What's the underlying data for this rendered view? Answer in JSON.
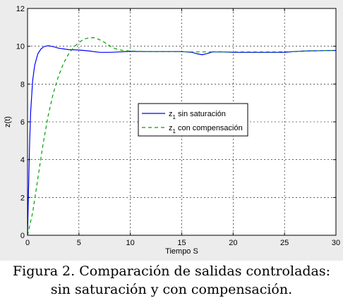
{
  "chart_data": {
    "type": "line",
    "xlabel": "Tiempo S",
    "ylabel": "z(t)",
    "xlim": [
      0,
      30
    ],
    "ylim": [
      0,
      12
    ],
    "x_ticks": [
      0,
      5,
      10,
      15,
      20,
      25,
      30
    ],
    "y_ticks": [
      0,
      2,
      4,
      6,
      8,
      10,
      12
    ],
    "grid": true,
    "legend_position": "center-right",
    "series": [
      {
        "name": "z",
        "name_subscript": "1",
        "name_suffix": " sin saturación",
        "color": "#0000ff",
        "dash": "solid",
        "x": [
          0,
          0.1,
          0.2,
          0.3,
          0.5,
          0.7,
          1.0,
          1.3,
          1.6,
          2.0,
          2.5,
          3,
          4,
          5,
          6,
          7,
          8,
          9,
          10,
          11,
          12,
          13,
          14,
          15,
          16,
          16.5,
          17,
          17.5,
          18,
          19,
          20,
          22,
          24,
          25,
          26,
          27,
          28,
          29,
          30
        ],
        "y": [
          0,
          2.5,
          4.8,
          6.5,
          8.2,
          9.0,
          9.6,
          9.85,
          9.98,
          10.03,
          9.98,
          9.9,
          9.82,
          9.8,
          9.75,
          9.68,
          9.68,
          9.7,
          9.73,
          9.72,
          9.72,
          9.72,
          9.72,
          9.72,
          9.68,
          9.6,
          9.55,
          9.62,
          9.7,
          9.7,
          9.68,
          9.68,
          9.68,
          9.68,
          9.72,
          9.75,
          9.76,
          9.77,
          9.78
        ]
      },
      {
        "name": "z",
        "name_subscript": "1",
        "name_suffix": " con compensación",
        "color": "#00a000",
        "dash": "dashed",
        "x": [
          0,
          0.5,
          1.0,
          1.5,
          2.0,
          2.5,
          3.0,
          3.5,
          4.0,
          4.5,
          5.0,
          5.5,
          6.0,
          6.5,
          7.0,
          7.5,
          8.0,
          8.5,
          9.0,
          9.5,
          10,
          11,
          12,
          14,
          16,
          18,
          20,
          22,
          24,
          26,
          28,
          30
        ],
        "y": [
          0,
          1.2,
          3.0,
          4.8,
          6.3,
          7.5,
          8.4,
          9.1,
          9.6,
          9.95,
          10.2,
          10.38,
          10.45,
          10.45,
          10.35,
          10.2,
          10.02,
          9.88,
          9.8,
          9.76,
          9.75,
          9.73,
          9.72,
          9.72,
          9.7,
          9.7,
          9.7,
          9.7,
          9.7,
          9.72,
          9.76,
          9.78
        ]
      }
    ]
  },
  "caption": {
    "line1": "Figura 2. Comparación de salidas controladas:",
    "line2": "sin saturación y con compensación."
  }
}
